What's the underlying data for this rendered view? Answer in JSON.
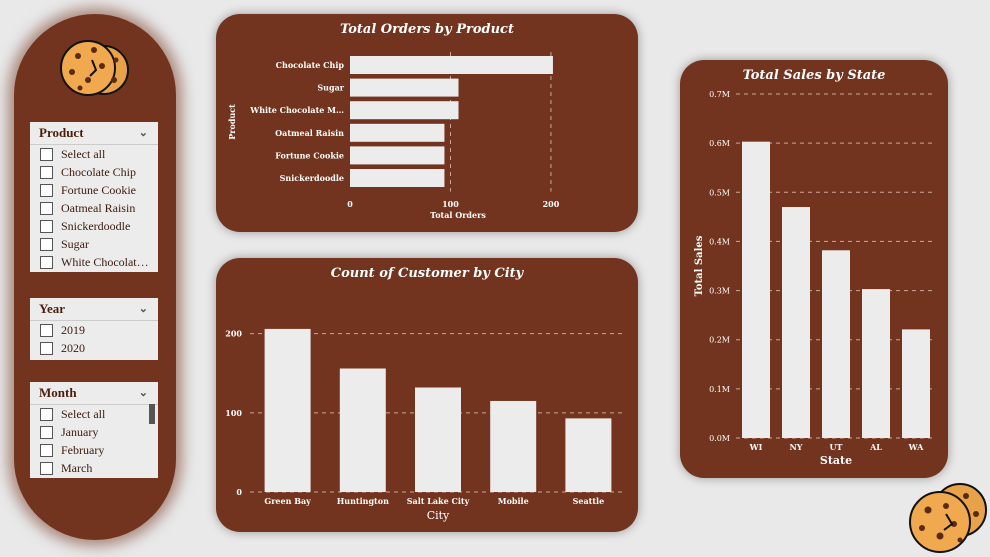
{
  "slicers": {
    "product": {
      "title": "Product",
      "items": [
        "Select all",
        "Chocolate Chip",
        "Fortune Cookie",
        "Oatmeal Raisin",
        "Snickerdoodle",
        "Sugar",
        "White Chocolat…"
      ]
    },
    "year": {
      "title": "Year",
      "items": [
        "2019",
        "2020"
      ]
    },
    "month": {
      "title": "Month",
      "items": [
        "Select all",
        "January",
        "February",
        "March"
      ]
    }
  },
  "colors": {
    "panel": "#72341e",
    "bar": "#ececec",
    "background": "#e9e9ea"
  },
  "icons": [
    "cookie-icon",
    "chevron-down-icon",
    "checkbox-icon"
  ],
  "chart_data": [
    {
      "type": "bar",
      "orientation": "horizontal",
      "title": "Total Orders by Product",
      "xlabel": "Total Orders",
      "ylabel": "Product",
      "categories": [
        "Chocolate Chip",
        "Sugar",
        "White Chocolate M…",
        "Oatmeal Raisin",
        "Fortune Cookie",
        "Snickerdoodle"
      ],
      "values": [
        202,
        108,
        108,
        94,
        94,
        94
      ],
      "xticks": [
        "0",
        "100",
        "200"
      ],
      "xlim": [
        0,
        215
      ],
      "grid": true
    },
    {
      "type": "bar",
      "title": "Count of Customer  by City",
      "xlabel": "City",
      "ylabel": "",
      "categories": [
        "Green Bay",
        "Huntington",
        "Salt Lake City",
        "Mobile",
        "Seattle"
      ],
      "values": [
        206,
        156,
        132,
        115,
        93
      ],
      "yticks": [
        "0",
        "100",
        "200"
      ],
      "ylim": [
        0,
        240
      ],
      "grid": true
    },
    {
      "type": "bar",
      "title": "Total Sales by State",
      "xlabel": "State",
      "ylabel": "Total Sales",
      "categories": [
        "WI",
        "NY",
        "UT",
        "AL",
        "WA"
      ],
      "values": [
        0.603,
        0.47,
        0.382,
        0.303,
        0.221
      ],
      "yticks": [
        "0.0M",
        "0.1M",
        "0.2M",
        "0.3M",
        "0.4M",
        "0.5M",
        "0.6M",
        "0.7M"
      ],
      "ylim": [
        0,
        0.7
      ],
      "grid": true
    }
  ]
}
